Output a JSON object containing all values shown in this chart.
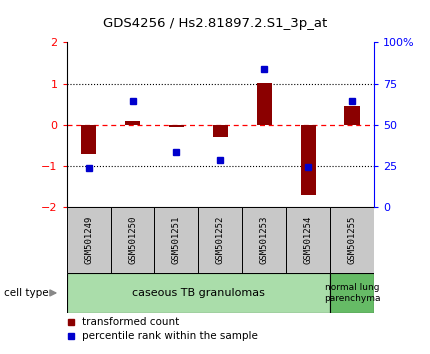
{
  "title": "GDS4256 / Hs2.81897.2.S1_3p_at",
  "samples": [
    "GSM501249",
    "GSM501250",
    "GSM501251",
    "GSM501252",
    "GSM501253",
    "GSM501254",
    "GSM501255"
  ],
  "red_bars": [
    -0.7,
    0.1,
    -0.05,
    -0.3,
    1.02,
    -1.7,
    0.45
  ],
  "blue_dots": [
    -1.05,
    0.58,
    -0.65,
    -0.85,
    1.35,
    -1.02,
    0.58
  ],
  "ylim": [
    -2.0,
    2.0
  ],
  "yticks_left": [
    -2,
    -1,
    0,
    1,
    2
  ],
  "yticks_right": [
    0,
    25,
    50,
    75,
    100
  ],
  "right_axis_labels": [
    "0",
    "25",
    "50",
    "75",
    "100%"
  ],
  "dotted_lines_black": [
    -1,
    1
  ],
  "red_color": "#8B0000",
  "blue_color": "#0000CD",
  "group1_label": "caseous TB granulomas",
  "group1_color": "#AADDAA",
  "group2_label": "normal lung\nparenchyma",
  "group2_color": "#66BB66",
  "sample_box_color": "#C8C8C8",
  "cell_type_label": "cell type",
  "legend_red": "transformed count",
  "legend_blue": "percentile rank within the sample",
  "bar_width": 0.35
}
